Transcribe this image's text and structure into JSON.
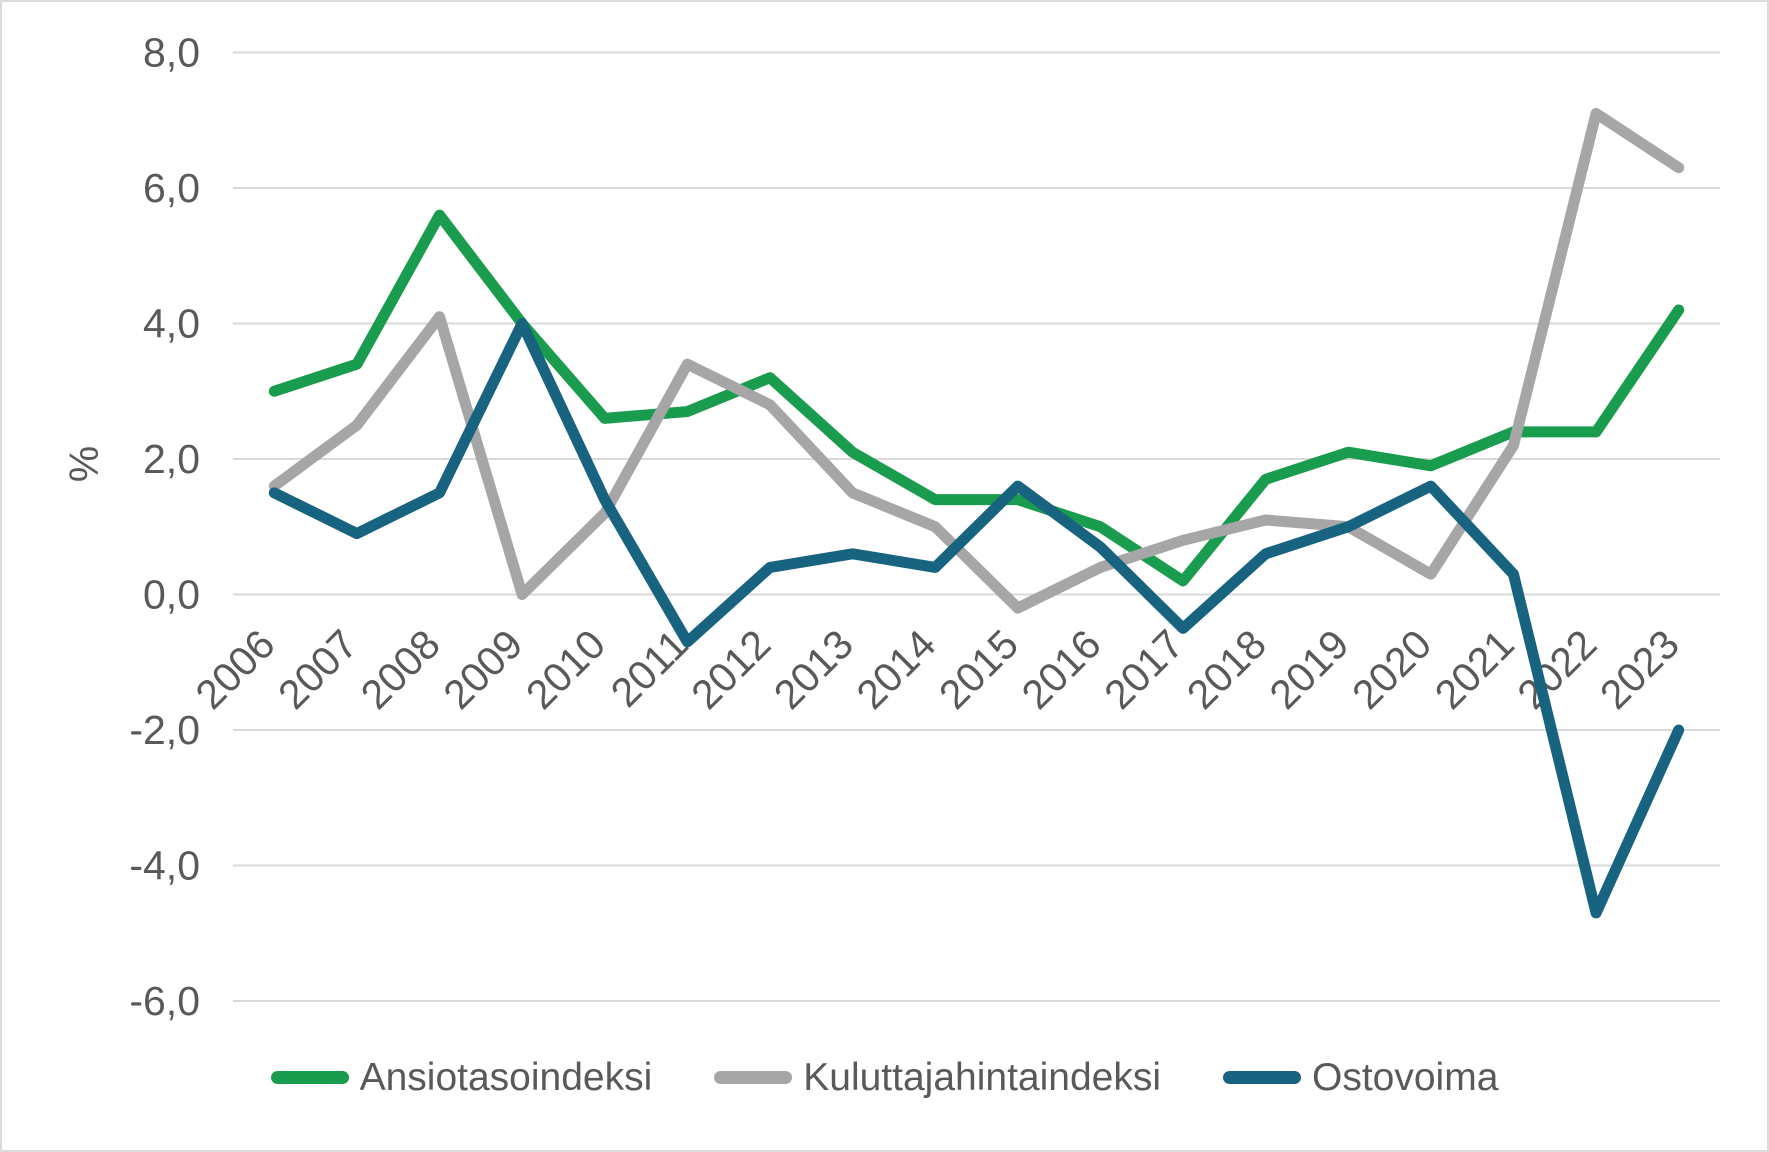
{
  "chart_data": {
    "type": "line",
    "title": "",
    "xlabel": "",
    "ylabel": "%",
    "grid": true,
    "legend_position": "bottom",
    "ylim": [
      -6,
      8
    ],
    "y_axis": {
      "ticks": [
        {
          "value": 8,
          "label": "8,0"
        },
        {
          "value": 6,
          "label": "6,0"
        },
        {
          "value": 4,
          "label": "4,0"
        },
        {
          "value": 2,
          "label": "2,0"
        },
        {
          "value": 0,
          "label": "0,0"
        },
        {
          "value": -2,
          "label": "-2,0"
        },
        {
          "value": -4,
          "label": "-4,0"
        },
        {
          "value": -6,
          "label": "-6,0"
        }
      ]
    },
    "categories": [
      "2006",
      "2007",
      "2008",
      "2009",
      "2010",
      "2011",
      "2012",
      "2013",
      "2014",
      "2015",
      "2016",
      "2017",
      "2018",
      "2019",
      "2020",
      "2021",
      "2022",
      "2023"
    ],
    "series": [
      {
        "name": "Ansiotasoindeksi",
        "color": "#1a9c4e",
        "values": [
          3.0,
          3.4,
          5.6,
          4.0,
          2.6,
          2.7,
          3.2,
          2.1,
          1.4,
          1.4,
          1.0,
          0.2,
          1.7,
          2.1,
          1.9,
          2.4,
          2.4,
          4.2
        ]
      },
      {
        "name": "Kuluttajahintaindeksi",
        "color": "#a6a6a6",
        "values": [
          1.6,
          2.5,
          4.1,
          0.0,
          1.2,
          3.4,
          2.8,
          1.5,
          1.0,
          -0.2,
          0.4,
          0.8,
          1.1,
          1.0,
          0.3,
          2.2,
          7.1,
          6.3
        ]
      },
      {
        "name": "Ostovoima",
        "color": "#176380",
        "values": [
          1.5,
          0.9,
          1.5,
          4.0,
          1.4,
          -0.7,
          0.4,
          0.6,
          0.4,
          1.6,
          0.7,
          -0.5,
          0.6,
          1.0,
          1.6,
          0.3,
          -4.7,
          -2.0
        ]
      }
    ],
    "colors": {
      "gridline": "#d9d9d9",
      "axis_text": "#595959",
      "legend_text": "#595959"
    }
  }
}
